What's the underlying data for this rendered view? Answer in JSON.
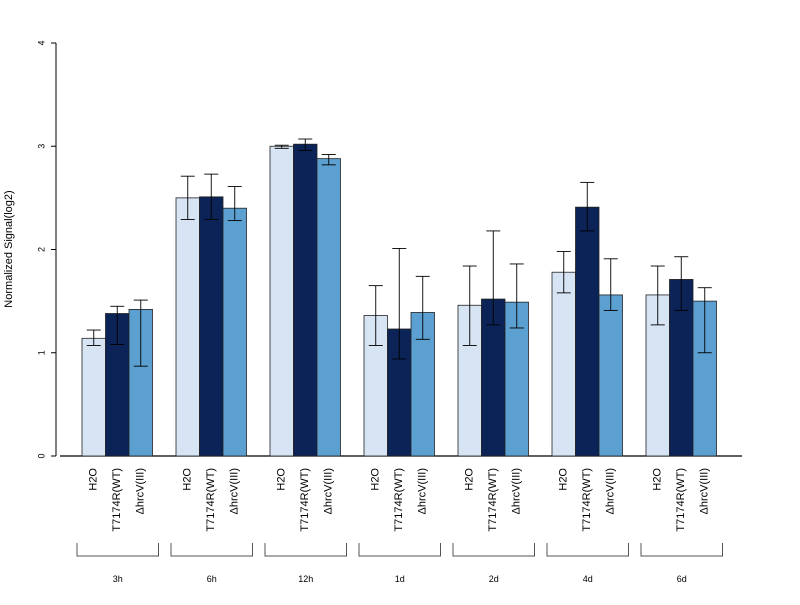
{
  "chart_data": {
    "type": "bar",
    "ylabel": "Normalized Signal(log2)",
    "ylim": [
      0,
      4
    ],
    "yticks": [
      "0",
      "1",
      "2",
      "3",
      "4"
    ],
    "groups": [
      "3h",
      "6h",
      "12h",
      "1d",
      "2d",
      "4d",
      "6d"
    ],
    "series": [
      {
        "name": "H2O",
        "color": "#d6e4f3",
        "values": [
          1.14,
          2.5,
          3.0,
          1.36,
          1.46,
          1.78,
          1.56
        ],
        "err_low": [
          1.07,
          2.29,
          2.98,
          1.07,
          1.07,
          1.58,
          1.27
        ],
        "err_high": [
          1.22,
          2.71,
          3.01,
          1.65,
          1.84,
          1.98,
          1.84
        ]
      },
      {
        "name": "T7174R(WT)",
        "color": "#0b2357",
        "values": [
          1.38,
          2.51,
          3.02,
          1.23,
          1.52,
          2.41,
          1.71
        ],
        "err_low": [
          1.08,
          2.29,
          2.96,
          0.94,
          1.27,
          2.18,
          1.41
        ],
        "err_high": [
          1.45,
          2.73,
          3.07,
          2.01,
          2.18,
          2.65,
          1.93
        ]
      },
      {
        "name": "ΔhrcV(III)",
        "color": "#5ba0d0",
        "values": [
          1.42,
          2.4,
          2.88,
          1.39,
          1.49,
          1.56,
          1.5
        ],
        "err_low": [
          0.87,
          2.28,
          2.82,
          1.13,
          1.24,
          1.41,
          1.0
        ],
        "err_high": [
          1.51,
          2.61,
          2.92,
          1.74,
          1.86,
          1.91,
          1.63
        ]
      }
    ]
  }
}
